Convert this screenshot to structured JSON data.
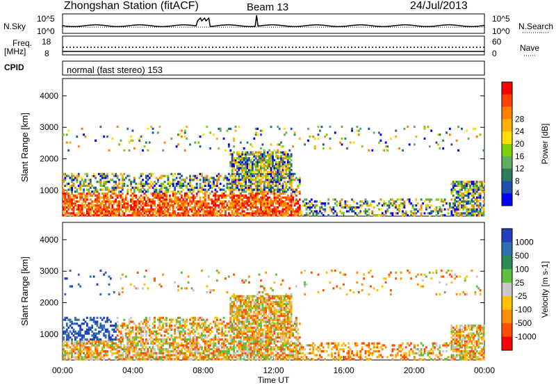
{
  "header": {
    "station": "Zhongshan Station (fitACF)",
    "beam": "Beam 13",
    "date": "24/Jul/2013"
  },
  "panels": {
    "nsky_label": "N.Sky",
    "nsearch_label": "N.Search",
    "nsky_top": "10^5",
    "nsky_bottom": "10^0",
    "nsearch_top": "10^5",
    "nsearch_bottom": "10^0",
    "freq_label": "Freq.",
    "freq_unit": "[MHz]",
    "freq_top": "18",
    "freq_bottom": "8",
    "nave_label": "Nave",
    "nave_top": "60",
    "nave_bottom": "0",
    "cpid_label": "CPID",
    "cpid_text": "normal (fast stereo) 153"
  },
  "chart_data": [
    {
      "type": "heatmap",
      "title": "",
      "ylabel": "Slant Range [km]",
      "xlabel": "",
      "ylim": [
        180,
        4550
      ],
      "xlim": [
        0,
        24
      ],
      "y_ticks": [
        "1000",
        "2000",
        "3000",
        "4000"
      ],
      "y_tick_values": [
        1000,
        2000,
        3000,
        4000
      ],
      "colorbar_label": "Power [dB]",
      "colorbar_ticks": [
        "4",
        "8",
        "12",
        "16",
        "20",
        "24",
        "28"
      ],
      "colorbar_colors": [
        "#0000ff",
        "#1e50b4",
        "#2e7d5c",
        "#5fae5f",
        "#7fd000",
        "#ffe000",
        "#ffb000",
        "#ff8000",
        "#ff4000",
        "#ff0000"
      ],
      "grid": false
    },
    {
      "type": "heatmap",
      "title": "",
      "ylabel": "Slant Range [km]",
      "xlabel": "Time UT",
      "ylim": [
        180,
        4550
      ],
      "xlim": [
        0,
        24
      ],
      "y_ticks": [
        "1000",
        "2000",
        "3000",
        "4000"
      ],
      "y_tick_values": [
        1000,
        2000,
        3000,
        4000
      ],
      "x_ticks": [
        "00:00",
        "04:00",
        "08:00",
        "12:00",
        "16:00",
        "20:00",
        "00:00"
      ],
      "x_tick_values": [
        0,
        4,
        8,
        12,
        16,
        20,
        24
      ],
      "colorbar_label": "Velocity [m s-1]",
      "colorbar_ticks": [
        "1000",
        "500",
        "100",
        "25",
        "-25",
        "-100",
        "-500",
        "-1000"
      ],
      "colorbar_colors": [
        "#2040c0",
        "#3070b0",
        "#2e8b57",
        "#5fc040",
        "#c8c8c8",
        "#ffc000",
        "#ff9000",
        "#ff5000",
        "#ff0000"
      ],
      "grid": false
    }
  ]
}
